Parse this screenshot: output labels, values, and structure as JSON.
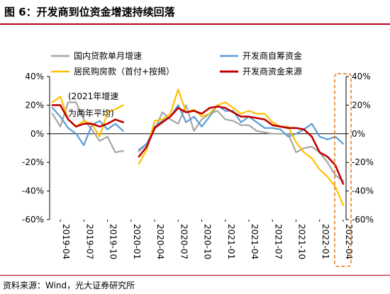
{
  "figure": {
    "title": "图 6：开发商到位资金增速持续回落",
    "source": "资料来源：Wind，光大证券研究所"
  },
  "chart_data": {
    "type": "line",
    "annotation": "(2021年增速为两年平均)",
    "legend_position": "top",
    "grid": false,
    "ylim": [
      -60,
      40
    ],
    "y_ticks": [
      40,
      20,
      0,
      -20,
      -40,
      -60
    ],
    "y_tick_labels": [
      "40%",
      "20%",
      "0%",
      "-20%",
      "-40%",
      "-60%"
    ],
    "x_tick_labels": [
      "2019-04",
      "2019-07",
      "2019-10",
      "2020-01",
      "2020-04",
      "2020-07",
      "2020-10",
      "2021-01",
      "2021-04",
      "2021-07",
      "2021-10",
      "2022-01",
      "2022-04"
    ],
    "highlight_box_color": "#e07b1a",
    "x": [
      "2019-03",
      "2019-04",
      "2019-05",
      "2019-06",
      "2019-07",
      "2019-08",
      "2019-09",
      "2019-10",
      "2019-11",
      "2019-12",
      "2020-01",
      "2020-02",
      "2020-03",
      "2020-04",
      "2020-05",
      "2020-06",
      "2020-07",
      "2020-08",
      "2020-09",
      "2020-10",
      "2020-11",
      "2020-12",
      "2021-01",
      "2021-02",
      "2021-03",
      "2021-04",
      "2021-05",
      "2021-06",
      "2021-07",
      "2021-08",
      "2021-09",
      "2021-10",
      "2021-11",
      "2021-12",
      "2022-01",
      "2022-02",
      "2022-03",
      "2022-04"
    ],
    "series": [
      {
        "name": "国内贷款单月增速",
        "color": "#a6a6a6",
        "values": [
          14,
          5,
          22,
          22,
          10,
          3,
          -5,
          -2,
          -13,
          -12,
          null,
          -11,
          -7,
          3,
          15,
          10,
          7,
          20,
          2,
          10,
          14,
          16,
          10,
          9,
          6,
          6,
          2,
          1,
          0,
          0,
          0,
          -13,
          -10,
          -9,
          -13,
          -20,
          -29,
          -33
        ]
      },
      {
        "name": "开发商自筹资金",
        "color": "#5b9bd5",
        "values": [
          18,
          12,
          4,
          0,
          -8,
          6,
          9,
          3,
          7,
          2,
          null,
          -12,
          -7,
          5,
          9,
          12,
          20,
          8,
          12,
          5,
          12,
          20,
          16,
          16,
          8,
          12,
          8,
          4,
          4,
          3,
          -2,
          0,
          3,
          7,
          -2,
          -4,
          -2,
          -7
        ]
      },
      {
        "name": "居民购房款（首付+按揭）",
        "color": "#ffc000",
        "values": [
          22,
          26,
          10,
          5,
          9,
          7,
          -2,
          15,
          17,
          20,
          null,
          -21,
          -11,
          9,
          10,
          14,
          31,
          15,
          17,
          12,
          14,
          20,
          22,
          18,
          14,
          16,
          14,
          14,
          8,
          5,
          5,
          -6,
          -13,
          -17,
          -25,
          -30,
          -37,
          -50
        ]
      },
      {
        "name": "开发商资金来源",
        "color": "#c00000",
        "values": [
          20,
          20,
          10,
          5,
          7,
          7,
          5,
          7,
          10,
          8,
          null,
          -16,
          -9,
          4,
          8,
          12,
          18,
          15,
          16,
          14,
          18,
          19,
          18,
          15,
          12,
          12,
          11,
          10,
          6,
          5,
          4,
          4,
          3,
          -2,
          -13,
          -16,
          -22,
          -35
        ]
      }
    ]
  }
}
